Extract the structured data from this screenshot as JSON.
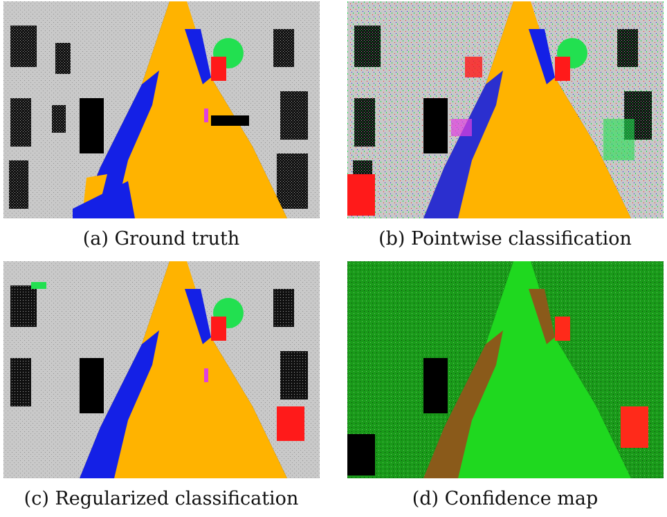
{
  "figure": {
    "panels": [
      {
        "id": "a",
        "caption": "(a) Ground truth",
        "scheme": "labels-clean"
      },
      {
        "id": "b",
        "caption": "(b) Pointwise classification",
        "scheme": "labels-noisy"
      },
      {
        "id": "c",
        "caption": "(c) Regularized classification",
        "scheme": "labels-regularized"
      },
      {
        "id": "d",
        "caption": "(d) Confidence map",
        "scheme": "confidence"
      }
    ],
    "class_colors": {
      "road": "#ffb300",
      "facade": "#c8c8c8",
      "car": "#1420e6",
      "vegetation": "#22e050",
      "pedestrian": "#e040e0",
      "other": "#ff1a1a",
      "shadow": "#000000"
    },
    "confidence_colors": {
      "high": "#1fd81f",
      "medium": "#8a5a1a",
      "low": "#ff2a1a",
      "dark": "#0b3a0b"
    }
  }
}
